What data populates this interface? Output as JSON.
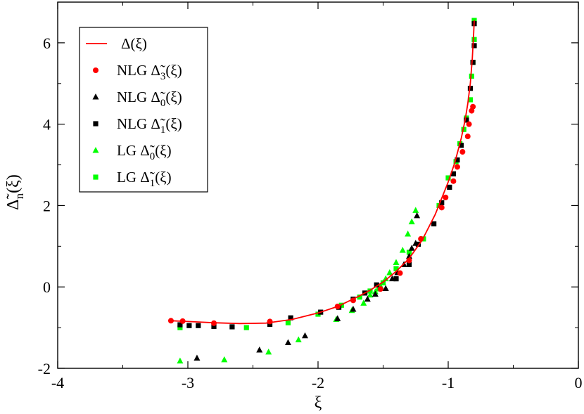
{
  "chart_data": {
    "type": "scatter",
    "xlabel": "ξ",
    "ylabel": "Δ̃n(ξ)",
    "xlim": [
      -4,
      0
    ],
    "ylim": [
      -2,
      7
    ],
    "x_ticks": [
      "-4",
      "-3",
      "-2",
      "-1",
      "0"
    ],
    "y_ticks": [
      "-2",
      "0",
      "2",
      "4",
      "6"
    ],
    "legend_position": "top-left",
    "series": [
      {
        "name": "Δ(ξ)",
        "legend": {
          "main": "Δ(ξ)",
          "sub": ""
        },
        "marker": "line",
        "color": "#ff0000",
        "points": [
          [
            -3.13,
            -0.83
          ],
          [
            -3.0,
            -0.85
          ],
          [
            -2.8,
            -0.88
          ],
          [
            -2.6,
            -0.9
          ],
          [
            -2.4,
            -0.89
          ],
          [
            -2.2,
            -0.8
          ],
          [
            -2.0,
            -0.64
          ],
          [
            -1.85,
            -0.48
          ],
          [
            -1.7,
            -0.25
          ],
          [
            -1.6,
            -0.08
          ],
          [
            -1.5,
            0.12
          ],
          [
            -1.4,
            0.38
          ],
          [
            -1.3,
            0.7
          ],
          [
            -1.2,
            1.15
          ],
          [
            -1.1,
            1.78
          ],
          [
            -1.0,
            2.58
          ],
          [
            -0.95,
            3.05
          ],
          [
            -0.9,
            3.65
          ],
          [
            -0.87,
            4.1
          ],
          [
            -0.85,
            4.5
          ],
          [
            -0.83,
            5.0
          ],
          [
            -0.815,
            5.6
          ],
          [
            -0.805,
            6.2
          ],
          [
            -0.8,
            6.55
          ]
        ]
      },
      {
        "name": "NLG Δ̃3(ξ)",
        "legend": {
          "main": "NLG  Δ̃",
          "sub": "3",
          "tail": "(ξ)"
        },
        "marker": "circle",
        "color": "#ff0000",
        "points": [
          [
            -3.13,
            -0.83
          ],
          [
            -3.04,
            -0.84
          ],
          [
            -2.8,
            -0.89
          ],
          [
            -2.37,
            -0.85
          ],
          [
            -1.85,
            -0.48
          ],
          [
            -1.73,
            -0.33
          ],
          [
            -1.52,
            -0.05
          ],
          [
            -1.37,
            0.34
          ],
          [
            -1.3,
            0.65
          ],
          [
            -1.21,
            1.18
          ],
          [
            -1.05,
            1.95
          ],
          [
            -1.02,
            2.2
          ],
          [
            -0.96,
            2.6
          ],
          [
            -0.93,
            2.95
          ],
          [
            -0.89,
            3.32
          ],
          [
            -0.85,
            3.7
          ],
          [
            -0.84,
            4.0
          ],
          [
            -0.82,
            4.33
          ],
          [
            -0.81,
            4.43
          ]
        ]
      },
      {
        "name": "NLG Δ̃0(ξ)",
        "legend": {
          "main": "NLG  Δ̃",
          "sub": "0",
          "tail": "(ξ)"
        },
        "marker": "triangle",
        "color": "#000000",
        "points": [
          [
            -2.93,
            -1.75
          ],
          [
            -2.45,
            -1.55
          ],
          [
            -2.23,
            -1.37
          ],
          [
            -2.1,
            -1.2
          ],
          [
            -1.85,
            -0.78
          ],
          [
            -1.73,
            -0.55
          ],
          [
            -1.62,
            -0.3
          ],
          [
            -1.56,
            -0.18
          ],
          [
            -1.48,
            -0.04
          ],
          [
            -1.43,
            0.2
          ],
          [
            -1.39,
            0.35
          ],
          [
            -1.34,
            0.55
          ],
          [
            -1.3,
            0.75
          ],
          [
            -1.28,
            0.95
          ],
          [
            -1.25,
            1.07
          ],
          [
            -1.24,
            1.75
          ]
        ]
      },
      {
        "name": "NLG Δ̃1(ξ)",
        "legend": {
          "main": "NLG  Δ̃",
          "sub": "1",
          "tail": "(ξ)"
        },
        "marker": "square",
        "color": "#000000",
        "points": [
          [
            -3.06,
            -0.93
          ],
          [
            -2.99,
            -0.95
          ],
          [
            -2.92,
            -0.95
          ],
          [
            -2.8,
            -0.97
          ],
          [
            -2.66,
            -0.98
          ],
          [
            -2.37,
            -0.92
          ],
          [
            -2.21,
            -0.76
          ],
          [
            -1.98,
            -0.62
          ],
          [
            -1.84,
            -0.5
          ],
          [
            -1.73,
            -0.3
          ],
          [
            -1.64,
            -0.15
          ],
          [
            -1.55,
            0.05
          ],
          [
            -1.4,
            0.2
          ],
          [
            -1.3,
            0.55
          ],
          [
            -1.23,
            1.05
          ],
          [
            -1.11,
            1.55
          ],
          [
            -1.05,
            2.07
          ],
          [
            -0.99,
            2.45
          ],
          [
            -0.96,
            2.78
          ],
          [
            -0.93,
            3.12
          ],
          [
            -0.9,
            3.48
          ],
          [
            -0.86,
            4.1
          ],
          [
            -0.83,
            4.88
          ],
          [
            -0.81,
            5.52
          ],
          [
            -0.8,
            5.93
          ],
          [
            -0.8,
            6.47
          ]
        ]
      },
      {
        "name": "LG Δ̃0(ξ)",
        "legend": {
          "main": "LG  Δ̃",
          "sub": "0",
          "tail": "(ξ)"
        },
        "marker": "triangle",
        "color": "#00ff00",
        "points": [
          [
            -3.06,
            -1.82
          ],
          [
            -2.72,
            -1.79
          ],
          [
            -2.38,
            -1.6
          ],
          [
            -2.15,
            -1.3
          ],
          [
            -1.86,
            -0.8
          ],
          [
            -1.74,
            -0.58
          ],
          [
            -1.65,
            -0.4
          ],
          [
            -1.6,
            -0.2
          ],
          [
            -1.56,
            -0.12
          ],
          [
            -1.54,
            -0.05
          ],
          [
            -1.52,
            0.02
          ],
          [
            -1.5,
            0.1
          ],
          [
            -1.48,
            0.2
          ],
          [
            -1.45,
            0.35
          ],
          [
            -1.4,
            0.6
          ],
          [
            -1.35,
            0.9
          ],
          [
            -1.31,
            1.3
          ],
          [
            -1.28,
            1.6
          ],
          [
            -1.25,
            1.88
          ]
        ]
      },
      {
        "name": "LG Δ̃1(ξ)",
        "legend": {
          "main": "LG  Δ̃",
          "sub": "1",
          "tail": "(ξ)"
        },
        "marker": "square",
        "color": "#00ff00",
        "points": [
          [
            -3.06,
            -1.0
          ],
          [
            -2.55,
            -1.0
          ],
          [
            -2.23,
            -0.88
          ],
          [
            -2.0,
            -0.67
          ],
          [
            -1.82,
            -0.45
          ],
          [
            -1.68,
            -0.25
          ],
          [
            -1.6,
            -0.1
          ],
          [
            -1.5,
            0.1
          ],
          [
            -1.4,
            0.45
          ],
          [
            -1.3,
            0.85
          ],
          [
            -1.19,
            1.18
          ],
          [
            -1.07,
            2.0
          ],
          [
            -1.0,
            2.68
          ],
          [
            -0.94,
            3.08
          ],
          [
            -0.91,
            3.52
          ],
          [
            -0.88,
            3.87
          ],
          [
            -0.86,
            4.15
          ],
          [
            -0.83,
            4.6
          ],
          [
            -0.82,
            5.18
          ],
          [
            -0.81,
            5.52
          ],
          [
            -0.8,
            6.08
          ],
          [
            -0.8,
            6.55
          ]
        ]
      }
    ]
  }
}
